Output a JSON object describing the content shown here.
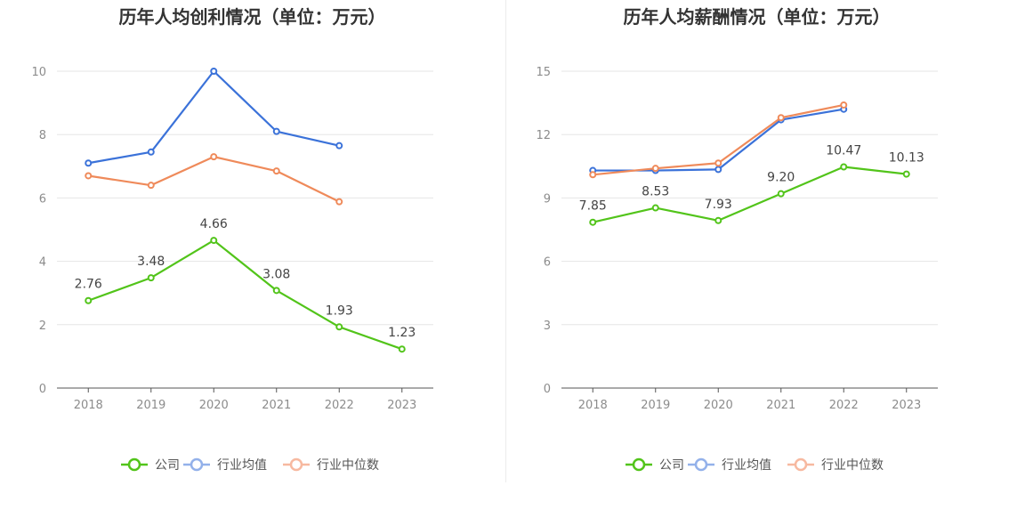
{
  "colors": {
    "company": "#52c41a",
    "industry_avg": "#3b72d9",
    "industry_median": "#ef8a5a",
    "legend_avg": "#93b1ea",
    "legend_median": "#f7b9a0"
  },
  "legend": [
    {
      "key": "company",
      "label": "公司"
    },
    {
      "key": "industry_avg",
      "label": "行业均值"
    },
    {
      "key": "industry_median",
      "label": "行业中位数"
    }
  ],
  "chart_data": [
    {
      "type": "line",
      "title": "历年人均创利情况（单位：万元）",
      "categories": [
        "2018",
        "2019",
        "2020",
        "2021",
        "2022",
        "2023"
      ],
      "ylim": [
        0,
        10
      ],
      "yticks": [
        0,
        2,
        4,
        6,
        8,
        10
      ],
      "grid": true,
      "legend_position": "bottom",
      "series": [
        {
          "key": "company",
          "name": "公司",
          "values": [
            2.76,
            3.48,
            4.66,
            3.08,
            1.93,
            1.23
          ],
          "labels": [
            "2.76",
            "3.48",
            "4.66",
            "3.08",
            "1.93",
            "1.23"
          ]
        },
        {
          "key": "industry_avg",
          "name": "行业均值",
          "values": [
            7.1,
            7.45,
            10.0,
            8.1,
            7.65,
            null
          ]
        },
        {
          "key": "industry_median",
          "name": "行业中位数",
          "values": [
            6.7,
            6.4,
            7.3,
            6.85,
            5.88,
            null
          ]
        }
      ]
    },
    {
      "type": "line",
      "title": "历年人均薪酬情况（单位：万元）",
      "categories": [
        "2018",
        "2019",
        "2020",
        "2021",
        "2022",
        "2023"
      ],
      "ylim": [
        0,
        15
      ],
      "yticks": [
        0,
        3,
        6,
        9,
        12,
        15
      ],
      "grid": true,
      "legend_position": "bottom",
      "series": [
        {
          "key": "company",
          "name": "公司",
          "values": [
            7.85,
            8.53,
            7.93,
            9.2,
            10.47,
            10.13
          ],
          "labels": [
            "7.85",
            "8.53",
            "7.93",
            "9.20",
            "10.47",
            "10.13"
          ]
        },
        {
          "key": "industry_avg",
          "name": "行业均值",
          "values": [
            10.3,
            10.3,
            10.35,
            12.7,
            13.2,
            null
          ]
        },
        {
          "key": "industry_median",
          "name": "行业中位数",
          "values": [
            10.1,
            10.4,
            10.65,
            12.8,
            13.4,
            null
          ]
        }
      ]
    }
  ]
}
